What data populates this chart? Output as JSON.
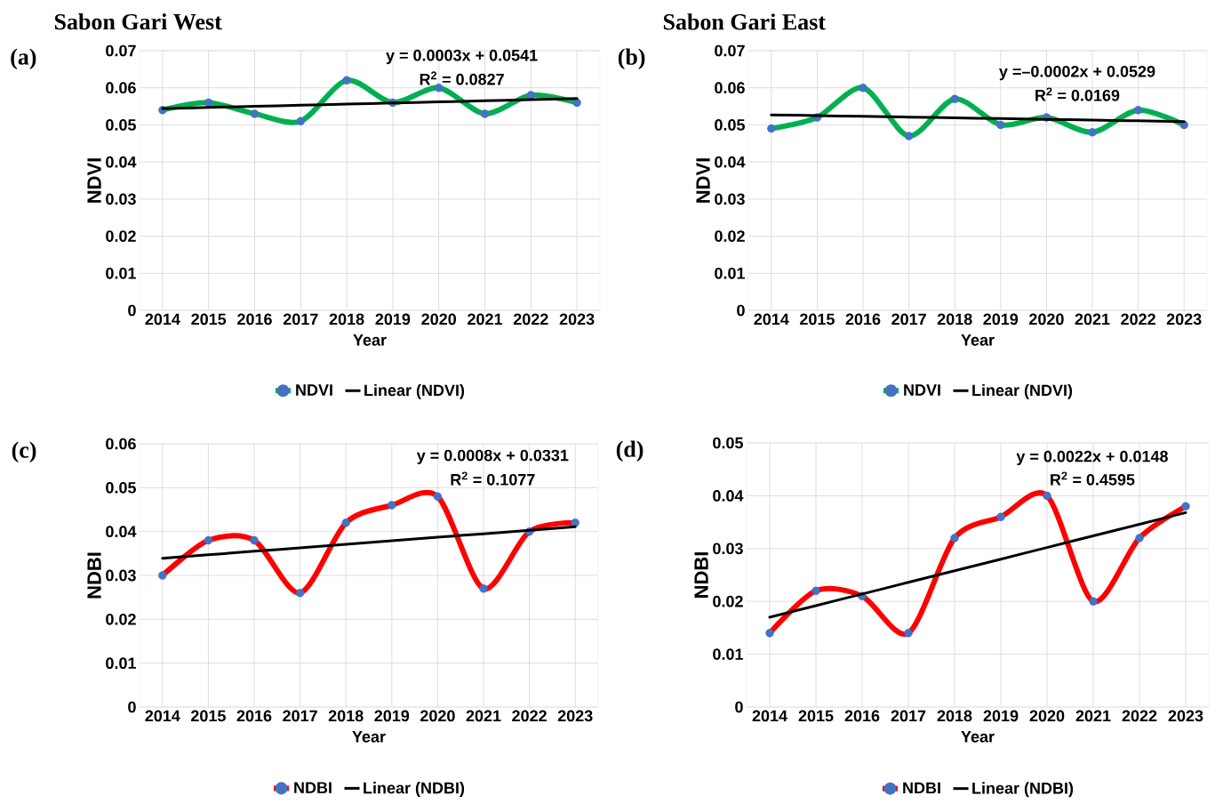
{
  "chart_data": [
    {
      "type": "line",
      "title": "Sabon Gari West",
      "xlabel": "Year",
      "ylabel": "NDVI",
      "x": [
        2014,
        2015,
        2016,
        2017,
        2018,
        2019,
        2020,
        2021,
        2022,
        2023
      ],
      "xlim": [
        2013.5,
        2023.5
      ],
      "xticks": [
        2014,
        2015,
        2016,
        2017,
        2018,
        2019,
        2020,
        2021,
        2022,
        2023
      ],
      "ylim": [
        0,
        0.07
      ],
      "yticks": [
        0,
        0.01,
        0.02,
        0.03,
        0.04,
        0.05,
        0.06,
        0.07
      ],
      "grid": true,
      "legend": "bottom",
      "annotations": [
        "(a)",
        "y = 0.0003x + 0.0541",
        "R$^{2}$ = 0.0827"
      ],
      "series": [
        {
          "name": "NDVI",
          "color": "#00b050",
          "marker": "circle",
          "colors": [
            "#4472c4",
            "#4472c4",
            "#4472c4",
            "#4472c4",
            "#4472c4",
            "#4472c4",
            "#4472c4",
            "#4472c4",
            "#4472c4",
            "#4472c4"
          ],
          "values": [
            0.054,
            0.056,
            0.053,
            0.051,
            0.062,
            0.056,
            0.06,
            0.053,
            0.058,
            0.056
          ]
        },
        {
          "name": "Linear (NDVI)",
          "color": "#000000",
          "values": [
            0.0544,
            0.0547,
            0.055,
            0.0553,
            0.0556,
            0.0559,
            0.0562,
            0.0565,
            0.0568,
            0.0571
          ]
        }
      ]
    },
    {
      "type": "line",
      "title": "Sabon Gari East",
      "xlabel": "Year",
      "ylabel": "NDVI",
      "x": [
        2014,
        2015,
        2016,
        2017,
        2018,
        2019,
        2020,
        2021,
        2022,
        2023
      ],
      "xlim": [
        2013.5,
        2023.5
      ],
      "xticks": [
        2014,
        2015,
        2016,
        2017,
        2018,
        2019,
        2020,
        2021,
        2022,
        2023
      ],
      "ylim": [
        0,
        0.07
      ],
      "yticks": [
        0,
        0.01,
        0.02,
        0.03,
        0.04,
        0.05,
        0.06,
        0.07
      ],
      "grid": true,
      "legend": "bottom",
      "annotations": [
        "(b)",
        "y =–0.0002x + 0.0529",
        "R$^{2}$ = 0.0169"
      ],
      "series": [
        {
          "name": "NDVI",
          "color": "#00b050",
          "marker": "circle",
          "colors": [
            "#4472c4",
            "#4472c4",
            "#4472c4",
            "#4472c4",
            "#4472c4",
            "#4472c4",
            "#4472c4",
            "#4472c4",
            "#4472c4",
            "#4472c4"
          ],
          "values": [
            0.049,
            0.052,
            0.06,
            0.047,
            0.057,
            0.05,
            0.052,
            0.048,
            0.054,
            0.05
          ]
        },
        {
          "name": "Linear (NDVI)",
          "color": "#000000",
          "values": [
            0.0527,
            0.0525,
            0.0523,
            0.0521,
            0.0519,
            0.0517,
            0.0515,
            0.0513,
            0.0511,
            0.0509
          ]
        }
      ]
    },
    {
      "type": "line",
      "xlabel": "Year",
      "ylabel": "NDBI",
      "x": [
        2014,
        2015,
        2016,
        2017,
        2018,
        2019,
        2020,
        2021,
        2022,
        2023
      ],
      "xlim": [
        2013.5,
        2023.5
      ],
      "xticks": [
        2014,
        2015,
        2016,
        2017,
        2018,
        2019,
        2020,
        2021,
        2022,
        2023
      ],
      "ylim": [
        0,
        0.06
      ],
      "yticks": [
        0,
        0.01,
        0.02,
        0.03,
        0.04,
        0.05,
        0.06
      ],
      "grid": true,
      "legend": "bottom",
      "annotations": [
        "(c)",
        "y = 0.0008x + 0.0331",
        "R$^{2}$ = 0.1077"
      ],
      "series": [
        {
          "name": "NDBI",
          "color": "#ff0000",
          "marker": "circle",
          "colors": [
            "#4472c4",
            "#4472c4",
            "#4472c4",
            "#4472c4",
            "#4472c4",
            "#4472c4",
            "#4472c4",
            "#4472c4",
            "#4472c4",
            "#4472c4"
          ],
          "values": [
            0.03,
            0.038,
            0.038,
            0.026,
            0.042,
            0.046,
            0.048,
            0.027,
            0.04,
            0.042
          ]
        },
        {
          "name": "Linear (NDBI)",
          "color": "#000000",
          "values": [
            0.0339,
            0.0347,
            0.0355,
            0.0363,
            0.0371,
            0.0379,
            0.0387,
            0.0395,
            0.0403,
            0.0411
          ]
        }
      ]
    },
    {
      "type": "line",
      "xlabel": "Year",
      "ylabel": "NDBI",
      "x": [
        2014,
        2015,
        2016,
        2017,
        2018,
        2019,
        2020,
        2021,
        2022,
        2023
      ],
      "xlim": [
        2013.5,
        2023.5
      ],
      "xticks": [
        2014,
        2015,
        2016,
        2017,
        2018,
        2019,
        2020,
        2021,
        2022,
        2023
      ],
      "ylim": [
        0,
        0.05
      ],
      "yticks": [
        0,
        0.01,
        0.02,
        0.03,
        0.04,
        0.05
      ],
      "grid": true,
      "legend": "bottom",
      "annotations": [
        "(d)",
        "y = 0.0022x + 0.0148",
        "R$^{2}$ = 0.4595"
      ],
      "series": [
        {
          "name": "NDBI",
          "color": "#ff0000",
          "marker": "circle",
          "colors": [
            "#4472c4",
            "#4472c4",
            "#4472c4",
            "#4472c4",
            "#4472c4",
            "#4472c4",
            "#4472c4",
            "#4472c4",
            "#4472c4",
            "#4472c4"
          ],
          "values": [
            0.014,
            0.022,
            0.021,
            0.014,
            0.032,
            0.036,
            0.04,
            0.02,
            0.032,
            0.038
          ]
        },
        {
          "name": "Linear (NDBI)",
          "color": "#000000",
          "values": [
            0.017,
            0.0192,
            0.0214,
            0.0236,
            0.0258,
            0.028,
            0.0302,
            0.0324,
            0.0346,
            0.0368
          ]
        }
      ]
    }
  ]
}
